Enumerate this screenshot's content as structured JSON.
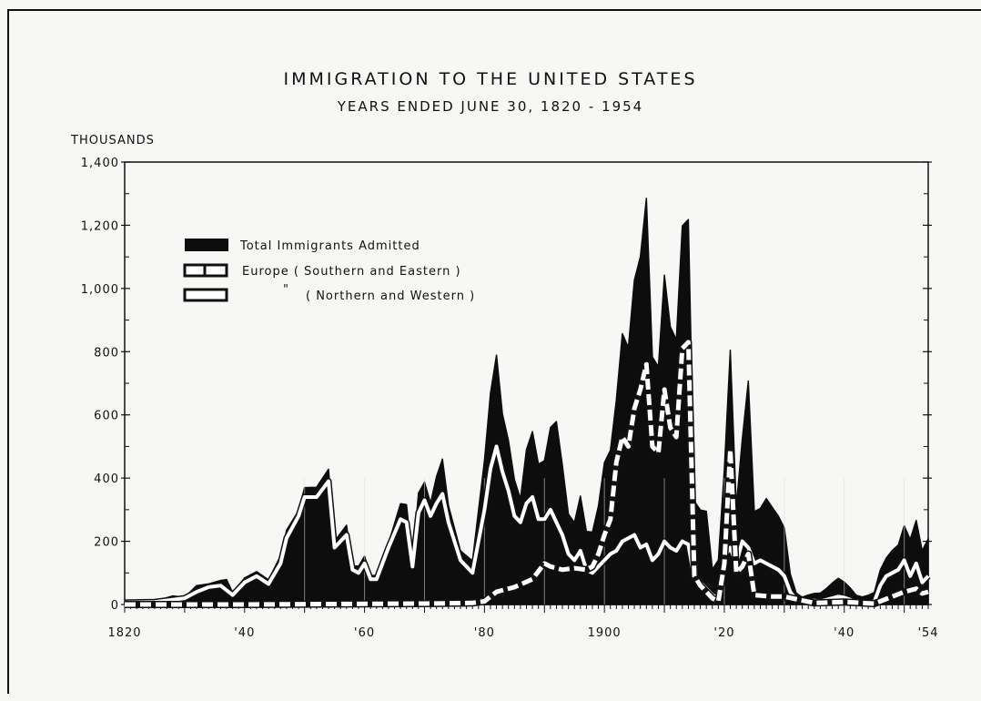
{
  "chart_data": {
    "type": "area",
    "title": "IMMIGRATION TO THE UNITED STATES",
    "subtitle": "YEARS ENDED JUNE 30, 1820 - 1954",
    "ylabel": "THOUSANDS",
    "xlabel": "",
    "xlim": [
      1820,
      1954
    ],
    "ylim": [
      0,
      1400
    ],
    "yticks": [
      0,
      200,
      400,
      600,
      800,
      1000,
      1200,
      1400
    ],
    "ytick_labels": [
      "0",
      "200",
      "400",
      "600",
      "800",
      "1,000",
      "1,200",
      "1,400"
    ],
    "xticks": [
      1820,
      1840,
      1860,
      1880,
      1900,
      1920,
      1940,
      1954
    ],
    "xtick_labels": [
      "1820",
      "'40",
      "'60",
      "'80",
      "1900",
      "'20",
      "'40",
      "'54"
    ],
    "legend_position": "top-left",
    "grid": false,
    "series": [
      {
        "name": "Total Immigrants Admitted",
        "style": "filled-black",
        "points": [
          [
            1820,
            8
          ],
          [
            1825,
            10
          ],
          [
            1828,
            27
          ],
          [
            1830,
            23
          ],
          [
            1832,
            60
          ],
          [
            1834,
            65
          ],
          [
            1836,
            76
          ],
          [
            1837,
            79
          ],
          [
            1838,
            38
          ],
          [
            1840,
            84
          ],
          [
            1842,
            104
          ],
          [
            1844,
            78
          ],
          [
            1846,
            154
          ],
          [
            1847,
            235
          ],
          [
            1849,
            297
          ],
          [
            1850,
            370
          ],
          [
            1852,
            371
          ],
          [
            1854,
            428
          ],
          [
            1855,
            200
          ],
          [
            1857,
            251
          ],
          [
            1858,
            123
          ],
          [
            1859,
            121
          ],
          [
            1860,
            153
          ],
          [
            1861,
            92
          ],
          [
            1862,
            92
          ],
          [
            1864,
            193
          ],
          [
            1866,
            319
          ],
          [
            1867,
            316
          ],
          [
            1868,
            138
          ],
          [
            1869,
            353
          ],
          [
            1870,
            387
          ],
          [
            1871,
            321
          ],
          [
            1872,
            405
          ],
          [
            1873,
            460
          ],
          [
            1874,
            313
          ],
          [
            1876,
            170
          ],
          [
            1878,
            138
          ],
          [
            1880,
            457
          ],
          [
            1881,
            669
          ],
          [
            1882,
            789
          ],
          [
            1883,
            603
          ],
          [
            1884,
            519
          ],
          [
            1885,
            395
          ],
          [
            1886,
            334
          ],
          [
            1887,
            490
          ],
          [
            1888,
            547
          ],
          [
            1889,
            444
          ],
          [
            1890,
            455
          ],
          [
            1891,
            560
          ],
          [
            1892,
            579
          ],
          [
            1893,
            440
          ],
          [
            1894,
            286
          ],
          [
            1895,
            259
          ],
          [
            1896,
            343
          ],
          [
            1897,
            231
          ],
          [
            1898,
            229
          ],
          [
            1899,
            312
          ],
          [
            1900,
            449
          ],
          [
            1901,
            488
          ],
          [
            1902,
            648
          ],
          [
            1903,
            857
          ],
          [
            1904,
            813
          ],
          [
            1905,
            1026
          ],
          [
            1906,
            1100
          ],
          [
            1907,
            1285
          ],
          [
            1908,
            783
          ],
          [
            1909,
            752
          ],
          [
            1910,
            1042
          ],
          [
            1911,
            879
          ],
          [
            1912,
            838
          ],
          [
            1913,
            1198
          ],
          [
            1914,
            1218
          ],
          [
            1915,
            327
          ],
          [
            1916,
            299
          ],
          [
            1917,
            295
          ],
          [
            1918,
            111
          ],
          [
            1919,
            141
          ],
          [
            1920,
            430
          ],
          [
            1921,
            805
          ],
          [
            1922,
            310
          ],
          [
            1923,
            523
          ],
          [
            1924,
            707
          ],
          [
            1925,
            294
          ],
          [
            1926,
            304
          ],
          [
            1927,
            335
          ],
          [
            1928,
            307
          ],
          [
            1929,
            280
          ],
          [
            1930,
            242
          ],
          [
            1931,
            97
          ],
          [
            1932,
            36
          ],
          [
            1933,
            23
          ],
          [
            1934,
            30
          ],
          [
            1935,
            35
          ],
          [
            1936,
            36
          ],
          [
            1937,
            50
          ],
          [
            1938,
            68
          ],
          [
            1939,
            83
          ],
          [
            1940,
            71
          ],
          [
            1941,
            52
          ],
          [
            1942,
            29
          ],
          [
            1943,
            24
          ],
          [
            1944,
            29
          ],
          [
            1945,
            38
          ],
          [
            1946,
            109
          ],
          [
            1947,
            147
          ],
          [
            1948,
            171
          ],
          [
            1949,
            188
          ],
          [
            1950,
            249
          ],
          [
            1951,
            206
          ],
          [
            1952,
            266
          ],
          [
            1953,
            170
          ],
          [
            1954,
            208
          ]
        ]
      },
      {
        "name": "Europe (Southern and Eastern)",
        "style": "dashed-white",
        "points": [
          [
            1820,
            0
          ],
          [
            1840,
            0
          ],
          [
            1860,
            2
          ],
          [
            1870,
            3
          ],
          [
            1878,
            5
          ],
          [
            1880,
            10
          ],
          [
            1882,
            40
          ],
          [
            1885,
            55
          ],
          [
            1888,
            80
          ],
          [
            1890,
            130
          ],
          [
            1891,
            120
          ],
          [
            1893,
            110
          ],
          [
            1895,
            115
          ],
          [
            1897,
            110
          ],
          [
            1898,
            120
          ],
          [
            1899,
            160
          ],
          [
            1900,
            220
          ],
          [
            1901,
            270
          ],
          [
            1902,
            450
          ],
          [
            1903,
            530
          ],
          [
            1904,
            500
          ],
          [
            1905,
            620
          ],
          [
            1906,
            680
          ],
          [
            1907,
            760
          ],
          [
            1908,
            500
          ],
          [
            1909,
            480
          ],
          [
            1910,
            680
          ],
          [
            1911,
            560
          ],
          [
            1912,
            530
          ],
          [
            1913,
            810
          ],
          [
            1914,
            830
          ],
          [
            1915,
            90
          ],
          [
            1916,
            60
          ],
          [
            1917,
            40
          ],
          [
            1918,
            20
          ],
          [
            1919,
            10
          ],
          [
            1920,
            130
          ],
          [
            1921,
            490
          ],
          [
            1922,
            100
          ],
          [
            1923,
            120
          ],
          [
            1924,
            160
          ],
          [
            1925,
            30
          ],
          [
            1928,
            25
          ],
          [
            1930,
            25
          ],
          [
            1935,
            5
          ],
          [
            1940,
            8
          ],
          [
            1945,
            3
          ],
          [
            1946,
            10
          ],
          [
            1948,
            25
          ],
          [
            1950,
            40
          ],
          [
            1951,
            45
          ],
          [
            1952,
            50
          ],
          [
            1953,
            35
          ],
          [
            1954,
            40
          ]
        ]
      },
      {
        "name": "(Northern and Western)",
        "style": "solid-white",
        "points": [
          [
            1820,
            6
          ],
          [
            1825,
            8
          ],
          [
            1830,
            20
          ],
          [
            1832,
            40
          ],
          [
            1834,
            55
          ],
          [
            1836,
            60
          ],
          [
            1838,
            30
          ],
          [
            1840,
            70
          ],
          [
            1842,
            90
          ],
          [
            1844,
            65
          ],
          [
            1846,
            130
          ],
          [
            1847,
            210
          ],
          [
            1849,
            280
          ],
          [
            1850,
            340
          ],
          [
            1852,
            340
          ],
          [
            1854,
            390
          ],
          [
            1855,
            180
          ],
          [
            1857,
            220
          ],
          [
            1858,
            110
          ],
          [
            1859,
            100
          ],
          [
            1860,
            130
          ],
          [
            1861,
            80
          ],
          [
            1862,
            80
          ],
          [
            1864,
            180
          ],
          [
            1866,
            270
          ],
          [
            1867,
            260
          ],
          [
            1868,
            120
          ],
          [
            1869,
            290
          ],
          [
            1870,
            330
          ],
          [
            1871,
            280
          ],
          [
            1872,
            320
          ],
          [
            1873,
            350
          ],
          [
            1874,
            260
          ],
          [
            1876,
            140
          ],
          [
            1878,
            100
          ],
          [
            1880,
            300
          ],
          [
            1881,
            430
          ],
          [
            1882,
            500
          ],
          [
            1883,
            420
          ],
          [
            1884,
            360
          ],
          [
            1885,
            280
          ],
          [
            1886,
            260
          ],
          [
            1887,
            320
          ],
          [
            1888,
            340
          ],
          [
            1889,
            270
          ],
          [
            1890,
            270
          ],
          [
            1891,
            300
          ],
          [
            1892,
            260
          ],
          [
            1893,
            220
          ],
          [
            1894,
            160
          ],
          [
            1895,
            140
          ],
          [
            1896,
            170
          ],
          [
            1897,
            110
          ],
          [
            1898,
            100
          ],
          [
            1899,
            120
          ],
          [
            1900,
            140
          ],
          [
            1901,
            160
          ],
          [
            1902,
            170
          ],
          [
            1903,
            200
          ],
          [
            1904,
            210
          ],
          [
            1905,
            220
          ],
          [
            1906,
            180
          ],
          [
            1907,
            190
          ],
          [
            1908,
            140
          ],
          [
            1909,
            160
          ],
          [
            1910,
            200
          ],
          [
            1911,
            180
          ],
          [
            1912,
            170
          ],
          [
            1913,
            200
          ],
          [
            1914,
            190
          ],
          [
            1915,
            80
          ],
          [
            1916,
            70
          ],
          [
            1917,
            50
          ],
          [
            1918,
            30
          ],
          [
            1919,
            20
          ],
          [
            1920,
            150
          ],
          [
            1921,
            180
          ],
          [
            1922,
            130
          ],
          [
            1923,
            200
          ],
          [
            1924,
            180
          ],
          [
            1925,
            130
          ],
          [
            1926,
            140
          ],
          [
            1927,
            130
          ],
          [
            1928,
            120
          ],
          [
            1929,
            110
          ],
          [
            1930,
            90
          ],
          [
            1931,
            40
          ],
          [
            1932,
            15
          ],
          [
            1933,
            10
          ],
          [
            1934,
            10
          ],
          [
            1935,
            12
          ],
          [
            1936,
            10
          ],
          [
            1937,
            15
          ],
          [
            1938,
            20
          ],
          [
            1939,
            25
          ],
          [
            1940,
            22
          ],
          [
            1941,
            15
          ],
          [
            1942,
            5
          ],
          [
            1943,
            4
          ],
          [
            1944,
            5
          ],
          [
            1945,
            8
          ],
          [
            1946,
            60
          ],
          [
            1947,
            90
          ],
          [
            1948,
            100
          ],
          [
            1949,
            110
          ],
          [
            1950,
            140
          ],
          [
            1951,
            90
          ],
          [
            1952,
            130
          ],
          [
            1953,
            70
          ],
          [
            1954,
            90
          ]
        ]
      }
    ],
    "legend": [
      {
        "label": "Total Immigrants Admitted",
        "swatch": "solid-black"
      },
      {
        "label": "Europe ( Southern and Eastern )",
        "swatch": "dashed-outline"
      },
      {
        "label": "\"",
        "sublabel": "( Northern and Western )",
        "swatch": "outline"
      }
    ]
  }
}
